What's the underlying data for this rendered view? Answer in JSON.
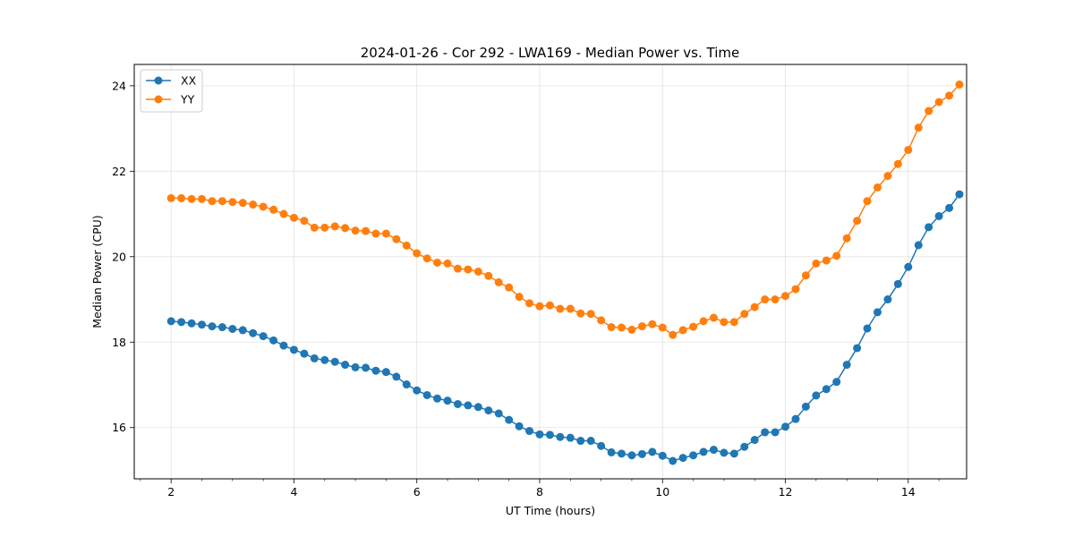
{
  "chart_data": {
    "type": "line",
    "title": "2024-01-26 - Cor 292 - LWA169 - Median Power vs. Time",
    "xlabel": "UT Time (hours)",
    "ylabel": "Median Power (CPU)",
    "xlim": [
      1.4,
      14.95
    ],
    "ylim": [
      14.8,
      24.5
    ],
    "xticks": [
      2,
      4,
      6,
      8,
      10,
      12,
      14
    ],
    "yticks": [
      16,
      18,
      20,
      22,
      24
    ],
    "xtick_labels": [
      "2",
      "4",
      "6",
      "8",
      "10",
      "12",
      "14"
    ],
    "ytick_labels": [
      "16",
      "18",
      "20",
      "22",
      "24"
    ],
    "grid": true,
    "legend_position": "upper-left",
    "x": [
      2.0,
      2.167,
      2.333,
      2.5,
      2.667,
      2.833,
      3.0,
      3.167,
      3.333,
      3.5,
      3.667,
      3.833,
      4.0,
      4.167,
      4.333,
      4.5,
      4.667,
      4.833,
      5.0,
      5.167,
      5.333,
      5.5,
      5.667,
      5.833,
      6.0,
      6.167,
      6.333,
      6.5,
      6.667,
      6.833,
      7.0,
      7.167,
      7.333,
      7.5,
      7.667,
      7.833,
      8.0,
      8.167,
      8.333,
      8.5,
      8.667,
      8.833,
      9.0,
      9.167,
      9.333,
      9.5,
      9.667,
      9.833,
      10.0,
      10.167,
      10.333,
      10.5,
      10.667,
      10.833,
      11.0,
      11.167,
      11.333,
      11.5,
      11.667,
      11.833,
      12.0,
      12.167,
      12.333,
      12.5,
      12.667,
      12.833,
      13.0,
      13.167,
      13.333,
      13.5,
      13.667,
      13.833,
      14.0,
      14.167,
      14.333,
      14.5,
      14.667,
      14.833
    ],
    "series": [
      {
        "name": "XX",
        "color": "#1f77b4",
        "values": [
          18.49,
          18.47,
          18.44,
          18.41,
          18.37,
          18.35,
          18.31,
          18.28,
          18.21,
          18.14,
          18.04,
          17.92,
          17.82,
          17.73,
          17.62,
          17.58,
          17.54,
          17.47,
          17.41,
          17.4,
          17.33,
          17.3,
          17.19,
          17.01,
          16.87,
          16.76,
          16.68,
          16.63,
          16.55,
          16.52,
          16.48,
          16.4,
          16.33,
          16.18,
          16.03,
          15.92,
          15.84,
          15.83,
          15.78,
          15.76,
          15.69,
          15.69,
          15.57,
          15.42,
          15.39,
          15.35,
          15.38,
          15.43,
          15.34,
          15.22,
          15.29,
          15.35,
          15.43,
          15.48,
          15.41,
          15.39,
          15.55,
          15.71,
          15.89,
          15.89,
          16.02,
          16.2,
          16.49,
          16.75,
          16.9,
          17.07,
          17.47,
          17.86,
          18.32,
          18.7,
          19.0,
          19.36,
          19.76,
          20.27,
          20.69,
          20.95,
          21.14,
          21.46
        ]
      },
      {
        "name": "YY",
        "color": "#ff7f0e",
        "values": [
          21.37,
          21.37,
          21.35,
          21.35,
          21.3,
          21.3,
          21.28,
          21.26,
          21.22,
          21.17,
          21.1,
          21.0,
          20.91,
          20.84,
          20.68,
          20.68,
          20.71,
          20.67,
          20.61,
          20.6,
          20.54,
          20.54,
          20.41,
          20.26,
          20.08,
          19.96,
          19.86,
          19.84,
          19.72,
          19.7,
          19.65,
          19.55,
          19.4,
          19.28,
          19.06,
          18.91,
          18.84,
          18.86,
          18.78,
          18.78,
          18.67,
          18.66,
          18.51,
          18.35,
          18.34,
          18.29,
          18.37,
          18.42,
          18.34,
          18.17,
          18.28,
          18.36,
          18.49,
          18.57,
          18.47,
          18.47,
          18.66,
          18.82,
          19.0,
          19.0,
          19.08,
          19.24,
          19.56,
          19.84,
          19.91,
          20.02,
          20.43,
          20.84,
          21.3,
          21.62,
          21.89,
          22.17,
          22.5,
          23.02,
          23.41,
          23.62,
          23.77,
          24.03
        ]
      }
    ]
  }
}
